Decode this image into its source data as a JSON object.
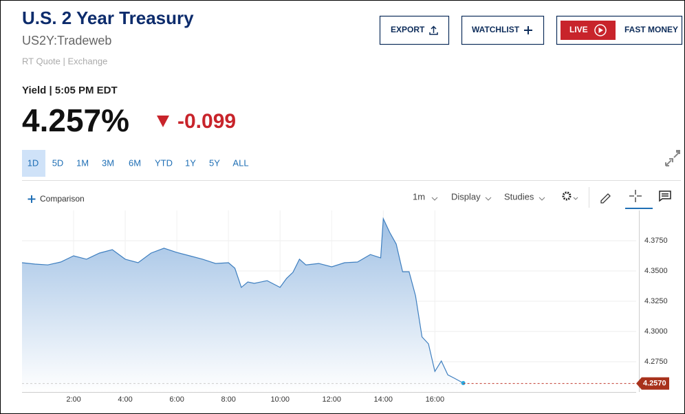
{
  "header": {
    "title": "U.S. 2 Year Treasury",
    "symbol": "US2Y:Tradeweb",
    "quote_source": "RT Quote | Exchange",
    "yield_time": "Yield | 5:05 PM EDT",
    "price": "4.257%",
    "change": "-0.099"
  },
  "buttons": {
    "export": "EXPORT",
    "watchlist": "WATCHLIST",
    "live": "LIVE",
    "fast_money": "FAST MONEY"
  },
  "ranges": [
    "1D",
    "5D",
    "1M",
    "3M",
    "6M",
    "YTD",
    "1Y",
    "5Y",
    "ALL"
  ],
  "toolbar": {
    "comparison": "Comparison",
    "interval": "1m",
    "display": "Display",
    "studies": "Studies"
  },
  "chart_data": {
    "type": "area",
    "color": "#3d7ebf",
    "grid": true,
    "x": [
      0,
      0.5,
      1,
      1.5,
      2,
      2.5,
      3,
      3.5,
      4,
      4.5,
      5,
      5.5,
      6,
      6.5,
      7,
      7.5,
      8,
      8.25,
      8.5,
      8.75,
      9,
      9.5,
      10,
      10.25,
      10.5,
      10.75,
      11,
      11.5,
      12,
      12.5,
      13,
      13.5,
      13.9,
      14,
      14.25,
      14.5,
      14.75,
      15,
      15.25,
      15.5,
      15.75,
      16,
      16.25,
      16.5,
      16.75,
      17,
      17.1
    ],
    "values": [
      4.3568,
      4.3557,
      4.355,
      4.3574,
      4.3625,
      4.3597,
      4.3648,
      4.3676,
      4.3597,
      4.3568,
      4.3648,
      4.3688,
      4.3653,
      4.3625,
      4.3597,
      4.3562,
      4.3568,
      4.3523,
      4.3364,
      4.3409,
      4.3398,
      4.342,
      4.3364,
      4.3438,
      4.3489,
      4.3597,
      4.355,
      4.3562,
      4.3534,
      4.3568,
      4.3574,
      4.3636,
      4.3608,
      4.3932,
      4.3818,
      4.3722,
      4.3494,
      4.3494,
      4.3295,
      4.2955,
      4.2898,
      4.267,
      4.2756,
      4.2642,
      4.2614,
      4.2585,
      4.2574
    ],
    "xlim": [
      0,
      23.8
    ],
    "xticks": [
      {
        "value": 2,
        "label": "2:00"
      },
      {
        "value": 4,
        "label": "4:00"
      },
      {
        "value": 6,
        "label": "6:00"
      },
      {
        "value": 8,
        "label": "8:00"
      },
      {
        "value": 10,
        "label": "10:00"
      },
      {
        "value": 12,
        "label": "12:00"
      },
      {
        "value": 14,
        "label": "14:00"
      },
      {
        "value": 16,
        "label": "16:00"
      }
    ],
    "ylim": [
      4.25,
      4.4
    ],
    "yticks": [
      {
        "value": 4.275,
        "label": "4.2750"
      },
      {
        "value": 4.3,
        "label": "4.3000"
      },
      {
        "value": 4.325,
        "label": "4.3250"
      },
      {
        "value": 4.35,
        "label": "4.3500"
      },
      {
        "value": 4.375,
        "label": "4.3750"
      }
    ],
    "current": {
      "value": 4.257,
      "label": "4.2570"
    }
  }
}
